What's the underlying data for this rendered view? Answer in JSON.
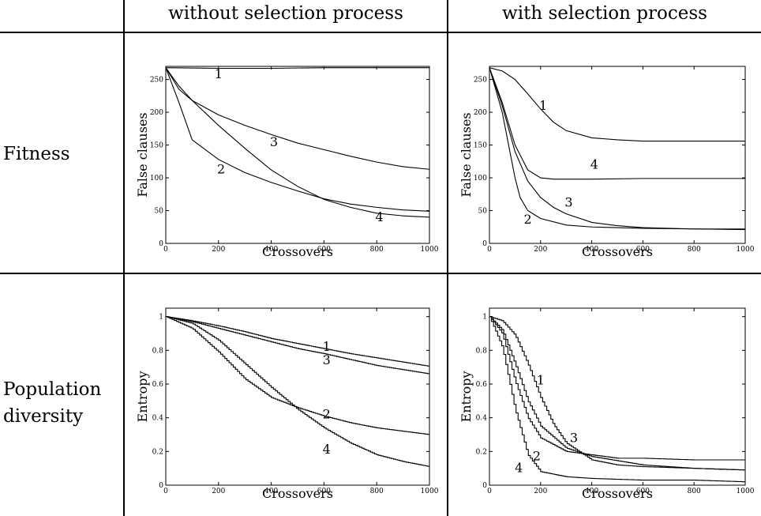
{
  "columns": [
    "without selection process",
    "with selection process"
  ],
  "rows": [
    "Fitness",
    "Population\ndiversity"
  ],
  "chart_data": [
    {
      "type": "line",
      "panel": "fitness-without-selection",
      "xlabel": "Crossovers",
      "ylabel": "False clauses",
      "xlim": [
        0,
        1000
      ],
      "ylim": [
        0,
        270
      ],
      "xticks": [
        0,
        200,
        400,
        600,
        800,
        1000
      ],
      "yticks": [
        0,
        50,
        100,
        150,
        200,
        250
      ],
      "step": false,
      "series": [
        {
          "name": "1",
          "label_at": [
            200,
            258
          ],
          "points": [
            [
              0,
              268
            ],
            [
              200,
              267
            ],
            [
              400,
              267
            ],
            [
              600,
              268
            ],
            [
              800,
              268
            ],
            [
              1000,
              268
            ]
          ]
        },
        {
          "name": "2",
          "label_at": [
            210,
            113
          ],
          "points": [
            [
              0,
              268
            ],
            [
              50,
              215
            ],
            [
              100,
              158
            ],
            [
              200,
              128
            ],
            [
              300,
              108
            ],
            [
              400,
              93
            ],
            [
              500,
              80
            ],
            [
              600,
              68
            ],
            [
              700,
              60
            ],
            [
              800,
              55
            ],
            [
              900,
              51
            ],
            [
              1000,
              49
            ]
          ]
        },
        {
          "name": "3",
          "label_at": [
            410,
            154
          ],
          "points": [
            [
              0,
              268
            ],
            [
              50,
              235
            ],
            [
              100,
              218
            ],
            [
              200,
              196
            ],
            [
              300,
              180
            ],
            [
              400,
              166
            ],
            [
              500,
              153
            ],
            [
              600,
              143
            ],
            [
              700,
              133
            ],
            [
              800,
              124
            ],
            [
              900,
              117
            ],
            [
              1000,
              113
            ]
          ]
        },
        {
          "name": "4",
          "label_at": [
            810,
            40
          ],
          "points": [
            [
              0,
              268
            ],
            [
              50,
              240
            ],
            [
              100,
              218
            ],
            [
              200,
              180
            ],
            [
              300,
              145
            ],
            [
              400,
              112
            ],
            [
              500,
              87
            ],
            [
              600,
              67
            ],
            [
              700,
              55
            ],
            [
              800,
              46
            ],
            [
              900,
              42
            ],
            [
              1000,
              40
            ]
          ]
        }
      ]
    },
    {
      "type": "line",
      "panel": "fitness-with-selection",
      "xlabel": "Crossovers",
      "ylabel": "False clauses",
      "xlim": [
        0,
        1000
      ],
      "ylim": [
        0,
        270
      ],
      "xticks": [
        0,
        200,
        400,
        600,
        800,
        1000
      ],
      "yticks": [
        0,
        50,
        100,
        150,
        200,
        250
      ],
      "step": false,
      "series": [
        {
          "name": "1",
          "label_at": [
            210,
            210
          ],
          "points": [
            [
              0,
              268
            ],
            [
              50,
              263
            ],
            [
              100,
              250
            ],
            [
              150,
              228
            ],
            [
              200,
              205
            ],
            [
              250,
              185
            ],
            [
              300,
              172
            ],
            [
              400,
              161
            ],
            [
              500,
              158
            ],
            [
              600,
              156
            ],
            [
              800,
              156
            ],
            [
              1000,
              156
            ]
          ]
        },
        {
          "name": "2",
          "label_at": [
            150,
            36
          ],
          "points": [
            [
              0,
              268
            ],
            [
              50,
              200
            ],
            [
              80,
              140
            ],
            [
              100,
              100
            ],
            [
              120,
              70
            ],
            [
              150,
              50
            ],
            [
              200,
              38
            ],
            [
              300,
              28
            ],
            [
              400,
              25
            ],
            [
              600,
              23
            ],
            [
              800,
              22
            ],
            [
              1000,
              21
            ]
          ]
        },
        {
          "name": "3",
          "label_at": [
            310,
            62
          ],
          "points": [
            [
              0,
              268
            ],
            [
              50,
              210
            ],
            [
              100,
              140
            ],
            [
              150,
              95
            ],
            [
              200,
              70
            ],
            [
              250,
              55
            ],
            [
              300,
              45
            ],
            [
              400,
              32
            ],
            [
              500,
              27
            ],
            [
              600,
              24
            ],
            [
              800,
              22
            ],
            [
              1000,
              22
            ]
          ]
        },
        {
          "name": "4",
          "label_at": [
            410,
            120
          ],
          "points": [
            [
              0,
              268
            ],
            [
              50,
              215
            ],
            [
              100,
              150
            ],
            [
              150,
              112
            ],
            [
              200,
              100
            ],
            [
              250,
              98
            ],
            [
              300,
              98
            ],
            [
              400,
              98
            ],
            [
              600,
              99
            ],
            [
              800,
              99
            ],
            [
              1000,
              99
            ]
          ]
        }
      ]
    },
    {
      "type": "line",
      "panel": "diversity-without-selection",
      "xlabel": "Crossovers",
      "ylabel": "Entropy",
      "xlim": [
        0,
        1000
      ],
      "ylim": [
        0,
        1.05
      ],
      "xticks": [
        0,
        200,
        400,
        600,
        800,
        1000
      ],
      "yticks": [
        0,
        0.2,
        0.4,
        0.6,
        0.8,
        1
      ],
      "step": true,
      "series": [
        {
          "name": "1",
          "label_at": [
            610,
            0.82
          ],
          "points": [
            [
              0,
              1
            ],
            [
              100,
              0.975
            ],
            [
              200,
              0.945
            ],
            [
              300,
              0.91
            ],
            [
              400,
              0.87
            ],
            [
              500,
              0.84
            ],
            [
              600,
              0.81
            ],
            [
              700,
              0.78
            ],
            [
              800,
              0.755
            ],
            [
              900,
              0.73
            ],
            [
              1000,
              0.705
            ]
          ]
        },
        {
          "name": "2",
          "label_at": [
            610,
            0.42
          ],
          "points": [
            [
              0,
              1
            ],
            [
              100,
              0.93
            ],
            [
              200,
              0.79
            ],
            [
              300,
              0.63
            ],
            [
              400,
              0.52
            ],
            [
              500,
              0.46
            ],
            [
              600,
              0.41
            ],
            [
              700,
              0.37
            ],
            [
              800,
              0.34
            ],
            [
              900,
              0.32
            ],
            [
              1000,
              0.3
            ]
          ]
        },
        {
          "name": "3",
          "label_at": [
            610,
            0.74
          ],
          "points": [
            [
              0,
              1
            ],
            [
              100,
              0.97
            ],
            [
              200,
              0.93
            ],
            [
              300,
              0.89
            ],
            [
              400,
              0.85
            ],
            [
              500,
              0.81
            ],
            [
              600,
              0.78
            ],
            [
              700,
              0.745
            ],
            [
              800,
              0.71
            ],
            [
              900,
              0.685
            ],
            [
              1000,
              0.66
            ]
          ]
        },
        {
          "name": "4",
          "label_at": [
            610,
            0.21
          ],
          "points": [
            [
              0,
              1
            ],
            [
              100,
              0.96
            ],
            [
              200,
              0.86
            ],
            [
              300,
              0.72
            ],
            [
              400,
              0.58
            ],
            [
              500,
              0.45
            ],
            [
              600,
              0.34
            ],
            [
              700,
              0.25
            ],
            [
              800,
              0.18
            ],
            [
              900,
              0.14
            ],
            [
              1000,
              0.11
            ]
          ]
        }
      ]
    },
    {
      "type": "line",
      "panel": "diversity-with-selection",
      "xlabel": "Crossovers",
      "ylabel": "Entropy",
      "xlim": [
        0,
        1000
      ],
      "ylim": [
        0,
        1.05
      ],
      "xticks": [
        0,
        200,
        400,
        600,
        800,
        1000
      ],
      "yticks": [
        0,
        0.2,
        0.4,
        0.6,
        0.8,
        1
      ],
      "step": true,
      "series": [
        {
          "name": "1",
          "label_at": [
            200,
            0.62
          ],
          "points": [
            [
              0,
              1
            ],
            [
              50,
              0.975
            ],
            [
              100,
              0.89
            ],
            [
              150,
              0.72
            ],
            [
              200,
              0.52
            ],
            [
              250,
              0.36
            ],
            [
              300,
              0.25
            ],
            [
              400,
              0.15
            ],
            [
              500,
              0.12
            ],
            [
              600,
              0.11
            ],
            [
              800,
              0.1
            ],
            [
              1000,
              0.09
            ]
          ]
        },
        {
          "name": "2",
          "label_at": [
            185,
            0.17
          ],
          "points": [
            [
              0,
              1
            ],
            [
              50,
              0.9
            ],
            [
              100,
              0.62
            ],
            [
              150,
              0.4
            ],
            [
              200,
              0.28
            ],
            [
              300,
              0.2
            ],
            [
              400,
              0.18
            ],
            [
              500,
              0.16
            ],
            [
              600,
              0.16
            ],
            [
              800,
              0.15
            ],
            [
              1000,
              0.15
            ]
          ]
        },
        {
          "name": "3",
          "label_at": [
            330,
            0.28
          ],
          "points": [
            [
              0,
              1
            ],
            [
              50,
              0.92
            ],
            [
              100,
              0.72
            ],
            [
              150,
              0.5
            ],
            [
              200,
              0.35
            ],
            [
              300,
              0.22
            ],
            [
              400,
              0.17
            ],
            [
              600,
              0.12
            ],
            [
              800,
              0.1
            ],
            [
              1000,
              0.09
            ]
          ]
        },
        {
          "name": "4",
          "label_at": [
            115,
            0.1
          ],
          "points": [
            [
              0,
              1
            ],
            [
              50,
              0.82
            ],
            [
              100,
              0.45
            ],
            [
              150,
              0.18
            ],
            [
              200,
              0.08
            ],
            [
              300,
              0.05
            ],
            [
              400,
              0.04
            ],
            [
              600,
              0.03
            ],
            [
              800,
              0.03
            ],
            [
              1000,
              0.02
            ]
          ]
        }
      ]
    }
  ]
}
